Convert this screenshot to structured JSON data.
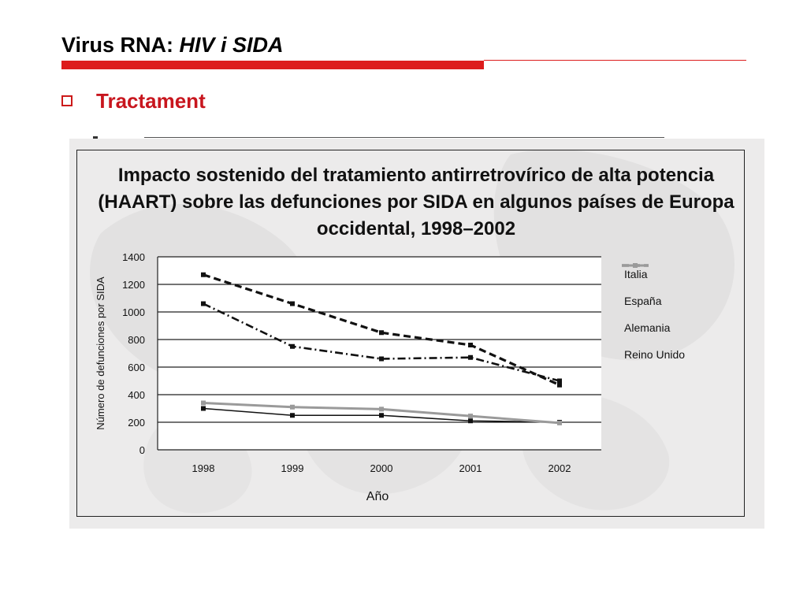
{
  "slide": {
    "title_plain": "Virus RNA: ",
    "title_italic": "HIV i SIDA",
    "bullet": "Tractament",
    "accent_color": "#dd1c1c"
  },
  "chart_data": {
    "type": "line",
    "title": "Impacto sostenido del tratamiento antirretrovírico de alta potencia (HAART) sobre las defunciones por SIDA en algunos países de Europa occidental, 1998–2002",
    "xlabel": "Año",
    "ylabel": "Número de defunciones por SIDA",
    "categories": [
      "1998",
      "1999",
      "2000",
      "2001",
      "2002"
    ],
    "ylim": [
      0,
      1400
    ],
    "yticks": [
      0,
      200,
      400,
      600,
      800,
      1000,
      1200,
      1400
    ],
    "grid": true,
    "legend_position": "right",
    "series": [
      {
        "name": "Italia",
        "values": [
          1060,
          750,
          660,
          670,
          500
        ],
        "color": "#111111",
        "dash": "dashdot",
        "width": 2.6
      },
      {
        "name": "España",
        "values": [
          1270,
          1060,
          850,
          760,
          470
        ],
        "color": "#111111",
        "dash": "dash",
        "width": 3.2
      },
      {
        "name": "Alemania",
        "values": [
          300,
          250,
          250,
          210,
          200
        ],
        "color": "#111111",
        "dash": "solid",
        "width": 1.6
      },
      {
        "name": "Reino Unido",
        "values": [
          340,
          310,
          295,
          245,
          195
        ],
        "color": "#9a9a9a",
        "dash": "solid",
        "width": 3
      }
    ]
  }
}
